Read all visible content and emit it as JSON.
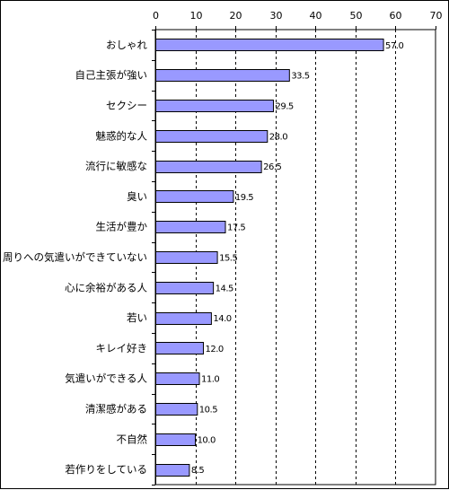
{
  "chart_data": {
    "type": "bar",
    "orientation": "horizontal",
    "categories": [
      "おしゃれ",
      "自己主張が強い",
      "セクシー",
      "魅惑的な人",
      "流行に敏感な",
      "臭い",
      "生活が豊か",
      "周りへの気遣いができていない",
      "心に余裕がある人",
      "若い",
      "キレイ好き",
      "気遣いができる人",
      "清潔感がある",
      "不自然",
      "若作りをしている"
    ],
    "values": [
      57.0,
      33.5,
      29.5,
      28.0,
      26.5,
      19.5,
      17.5,
      15.5,
      14.5,
      14.0,
      12.0,
      11.0,
      10.5,
      10.0,
      8.5
    ],
    "value_labels": [
      "57.0",
      "33.5",
      "29.5",
      "28.0",
      "26.5",
      "19.5",
      "17.5",
      "15.5",
      "14.5",
      "14.0",
      "12.0",
      "11.0",
      "10.5",
      "10.0",
      "8.5"
    ],
    "xlim": [
      0,
      70
    ],
    "x_ticks": [
      0,
      10,
      20,
      30,
      40,
      50,
      60,
      70
    ],
    "x_axis_position": "top",
    "grid": "vertical-dashed",
    "bar_color": "#9999ff",
    "bar_edge_color": "#000000"
  }
}
